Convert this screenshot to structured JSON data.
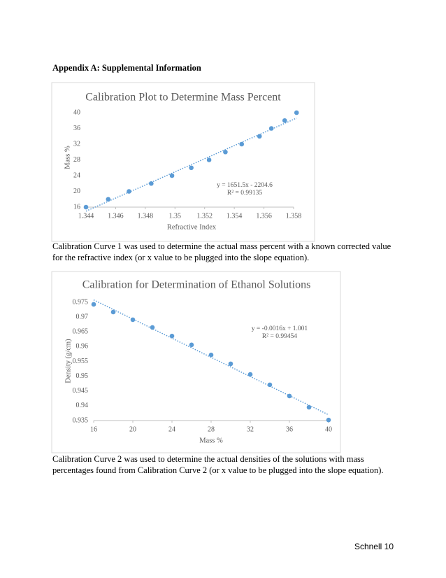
{
  "heading": "Appendix A: Supplemental Information",
  "caption1": [
    "Calibration Curve 1 was used to determine the actual mass percent with a known corrected value",
    "for the refractive index (or x value to be plugged into the slope equation)."
  ],
  "caption2": [
    "Calibration Curve 2 was used to determine the actual densities of the solutions with mass",
    "percentages found from Calibration Curve 2 (or x value to be plugged into the slope equation)."
  ],
  "footer": "Schnell 10",
  "chart_data": [
    {
      "type": "scatter",
      "title": "Calibration Plot to Determine Mass Percent",
      "x_label": "Refractive Index",
      "y_label": "Mass %",
      "x": [
        1.344,
        1.3455,
        1.3469,
        1.3484,
        1.3498,
        1.3511,
        1.3523,
        1.3534,
        1.3545,
        1.3557,
        1.3565,
        1.3574,
        1.3582
      ],
      "values": [
        16,
        18,
        20,
        22,
        24,
        26,
        28,
        30,
        32,
        34,
        36,
        38,
        40
      ],
      "color": "#5b9bd5",
      "xlim": [
        1.344,
        1.358
      ],
      "xticks": [
        1.344,
        1.346,
        1.348,
        1.35,
        1.352,
        1.354,
        1.356,
        1.358
      ],
      "ylim": [
        16,
        40
      ],
      "yticks": [
        16,
        20,
        24,
        28,
        32,
        36,
        40
      ],
      "trendline": true,
      "annotations": [
        "y = 1651.5x - 2204.6",
        "R² = 0.99135"
      ]
    },
    {
      "type": "scatter",
      "title": "Calibration for Determination of Ethanol Solutions",
      "x_label": "Mass %",
      "y_label": "Density (g/cm)",
      "x": [
        16,
        18,
        20,
        22,
        24,
        26,
        28,
        30,
        32,
        34,
        36,
        38,
        40
      ],
      "values": [
        0.9743,
        0.9717,
        0.9691,
        0.9665,
        0.9636,
        0.9606,
        0.9572,
        0.9542,
        0.9506,
        0.9471,
        0.9433,
        0.9395,
        0.9352
      ],
      "color": "#5b9bd5",
      "xlim": [
        16,
        40
      ],
      "xticks": [
        16,
        20,
        24,
        28,
        32,
        36,
        40
      ],
      "ylim": [
        0.935,
        0.975
      ],
      "yticks": [
        0.935,
        0.94,
        0.945,
        0.95,
        0.955,
        0.96,
        0.965,
        0.97,
        0.975
      ],
      "trendline": true,
      "annotations": [
        "y = -0.0016x + 1.001",
        "R² = 0.99454"
      ]
    }
  ]
}
